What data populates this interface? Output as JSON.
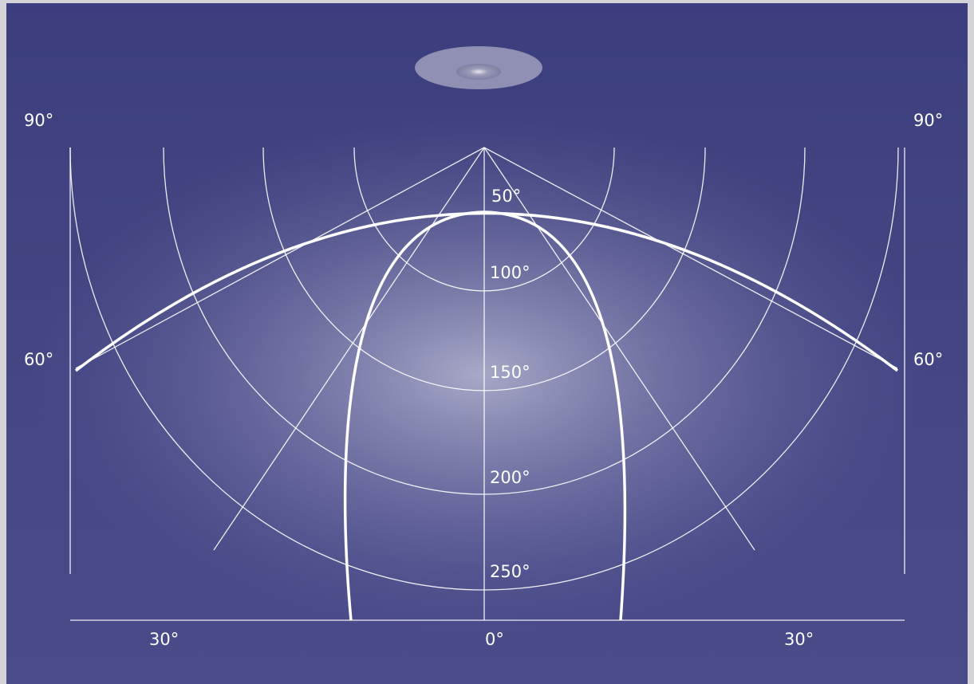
{
  "angle_labels": [
    "90°",
    "90°",
    "60°",
    "60°",
    "30°",
    "0°",
    "30°"
  ],
  "ring_labels": [
    "50°",
    "100°",
    "150°",
    "200°",
    "250°"
  ]
}
